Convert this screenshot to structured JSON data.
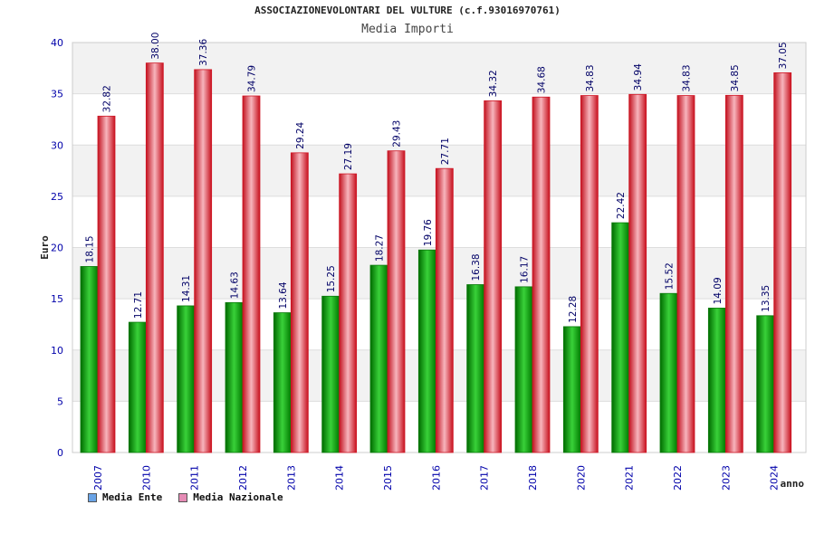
{
  "header": {
    "title": "ASSOCIAZIONEVOLONTARI DEL VULTURE (c.f.93016970761)",
    "subtitle": "Media Importi"
  },
  "legend": [
    {
      "label": "Media Ente",
      "color": "#6aa4e6"
    },
    {
      "label": "Media Nazionale",
      "color": "#e58bb5"
    }
  ],
  "colors": {
    "ente": "#1aa31a",
    "nazionale": "#e8202f",
    "axis_text": "#0000aa",
    "label_text": "#000066",
    "band": "#f2f2f2"
  },
  "chart_data": {
    "type": "bar",
    "title": "Media Importi",
    "xlabel": "anno",
    "ylabel": "Euro",
    "ylim": [
      0,
      40
    ],
    "yticks": [
      0,
      5,
      10,
      15,
      20,
      25,
      30,
      35,
      40
    ],
    "categories": [
      "2007",
      "2010",
      "2011",
      "2012",
      "2013",
      "2014",
      "2015",
      "2016",
      "2017",
      "2018",
      "2020",
      "2021",
      "2022",
      "2023",
      "2024"
    ],
    "series": [
      {
        "name": "Media Ente",
        "values": [
          18.15,
          12.71,
          14.31,
          14.63,
          13.64,
          15.25,
          18.27,
          19.76,
          16.38,
          16.17,
          12.28,
          22.42,
          15.52,
          14.09,
          13.35
        ],
        "labels": [
          "18.15",
          "12.71",
          "14.31",
          "14.63",
          "13.64",
          "15.25",
          "18.27",
          "19.76",
          "16.38",
          "16.17",
          "12.28",
          "22.42",
          "15.52",
          "14.09",
          "13.35"
        ]
      },
      {
        "name": "Media Nazionale",
        "values": [
          32.82,
          38.0,
          37.36,
          34.79,
          29.24,
          27.19,
          29.43,
          27.71,
          34.32,
          34.68,
          34.83,
          34.94,
          34.83,
          34.85,
          37.05
        ],
        "labels": [
          "32.82",
          "38.00",
          "37.36",
          "34.79",
          "29.24",
          "27.19",
          "29.43",
          "27.71",
          "34.32",
          "34.68",
          "34.83",
          "34.94",
          "34.83",
          "34.85",
          "37.05"
        ]
      }
    ]
  }
}
